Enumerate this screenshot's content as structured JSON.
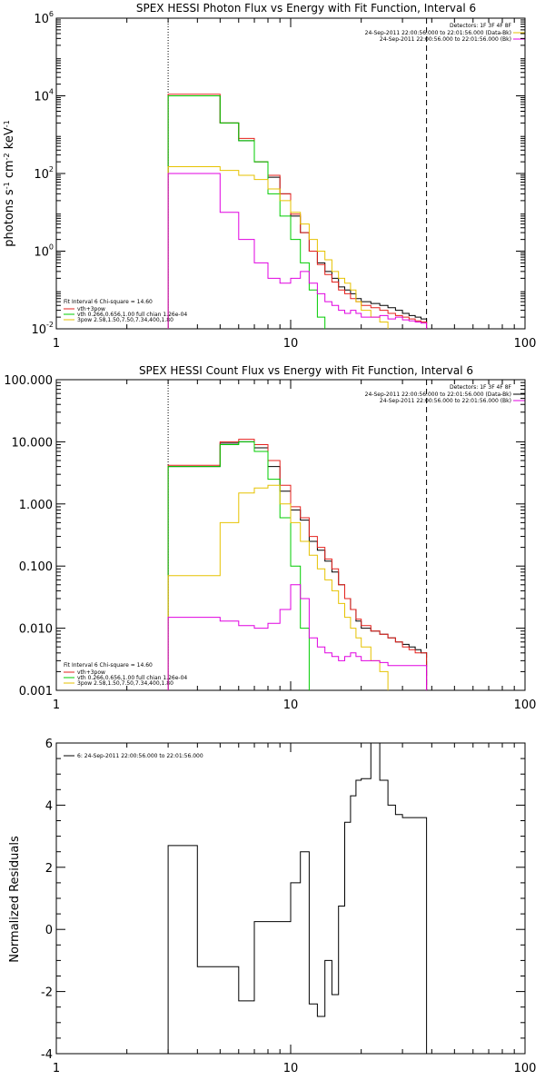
{
  "colors": {
    "black": "#000000",
    "red": "#e4201c",
    "green": "#00cc00",
    "yellow": "#e6c200",
    "magenta": "#e000e0"
  },
  "chart_data": [
    {
      "type": "line",
      "title": "SPEX HESSI Photon Flux vs Energy with Fit Function, Interval 6",
      "ylabel_parts": [
        "photons s",
        "-1",
        " cm",
        "-2",
        " keV",
        "-1"
      ],
      "xscale": "log",
      "yscale": "log",
      "xlim": [
        1,
        100
      ],
      "ylim": [
        0.01,
        1000000
      ],
      "xticks": [
        1,
        10,
        100
      ],
      "xtick_labels": [
        "1",
        "10",
        "100"
      ],
      "yticks": [
        0.01,
        1,
        100,
        10000,
        1000000
      ],
      "ytick_labels": [
        {
          "base": "10",
          "exp": "-2"
        },
        {
          "base": "10",
          "exp": "0"
        },
        {
          "base": "10",
          "exp": "2"
        },
        {
          "base": "10",
          "exp": "4"
        },
        {
          "base": "10",
          "exp": "6"
        }
      ],
      "vlines": [
        {
          "x": 3,
          "style": "dotted"
        },
        {
          "x": 38,
          "style": "dashed"
        }
      ],
      "legend_top_right": {
        "header": "Detectors: 1F 3F 4F 8F",
        "entries": [
          {
            "text": "24-Sep-2011 22:00:56.000 to 22:01:56.000 (Data-Bk)",
            "color": "#e6c200"
          },
          {
            "text": "24-Sep-2011 22:00:56.000 to 22:01:56.000 (Bk)",
            "color": "#e000e0"
          }
        ]
      },
      "legend_bottom_left": {
        "header": "Fit Interval  6    Chi-square = 14.60",
        "entries": [
          {
            "text": "vth+3pow",
            "color": "#e4201c"
          },
          {
            "text": "vth 0.266,0.656,1.00  full chian 1.26e-04",
            "color": "#00cc00"
          },
          {
            "text": "3pow 2.58,1.50,7.50,7.34,400,1.80",
            "color": "#e6c200"
          }
        ]
      },
      "series": [
        {
          "color": "#000000",
          "x": [
            3,
            4,
            5,
            6,
            7,
            8,
            9,
            10,
            11,
            12,
            13,
            14,
            15,
            16,
            17,
            18,
            19,
            20,
            22,
            24,
            26,
            28,
            30,
            32,
            34,
            36,
            38
          ],
          "y": [
            10000,
            10000,
            2000,
            700,
            200,
            80,
            30,
            8,
            3,
            1,
            0.5,
            0.3,
            0.2,
            0.12,
            0.1,
            0.08,
            0.06,
            0.05,
            0.045,
            0.04,
            0.035,
            0.03,
            0.025,
            0.022,
            0.02,
            0.018,
            0.015
          ]
        },
        {
          "color": "#e4201c",
          "x": [
            3,
            4,
            5,
            6,
            7,
            8,
            9,
            10,
            11,
            12,
            13,
            14,
            15,
            16,
            17,
            18,
            19,
            20,
            22,
            24,
            26,
            28,
            30,
            32,
            34,
            36,
            38
          ],
          "y": [
            11000,
            11000,
            2000,
            800,
            200,
            90,
            30,
            9,
            3,
            1,
            0.45,
            0.25,
            0.16,
            0.1,
            0.08,
            0.06,
            0.05,
            0.04,
            0.035,
            0.03,
            0.025,
            0.022,
            0.02,
            0.018,
            0.016,
            0.015,
            0.013
          ]
        },
        {
          "color": "#00cc00",
          "x": [
            3,
            4,
            5,
            6,
            7,
            8,
            9,
            10,
            11,
            12,
            13,
            14
          ],
          "y": [
            10000,
            10000,
            2000,
            700,
            200,
            30,
            8,
            2,
            0.5,
            0.1,
            0.02,
            0.01
          ]
        },
        {
          "color": "#e6c200",
          "x": [
            3,
            4,
            5,
            6,
            7,
            8,
            9,
            10,
            11,
            12,
            13,
            14,
            15,
            16,
            17,
            18,
            19,
            20,
            22,
            24,
            26
          ],
          "y": [
            150,
            150,
            120,
            90,
            70,
            40,
            20,
            10,
            5,
            2,
            1,
            0.6,
            0.3,
            0.2,
            0.15,
            0.1,
            0.05,
            0.03,
            0.02,
            0.015,
            0.01
          ]
        },
        {
          "color": "#e000e0",
          "x": [
            3,
            4,
            5,
            6,
            7,
            8,
            9,
            10,
            11,
            12,
            13,
            14,
            15,
            16,
            17,
            18,
            19,
            20,
            22,
            24,
            26,
            28,
            30,
            32,
            34,
            36,
            38
          ],
          "y": [
            100,
            100,
            10,
            2,
            0.5,
            0.2,
            0.15,
            0.2,
            0.3,
            0.15,
            0.08,
            0.05,
            0.04,
            0.03,
            0.025,
            0.03,
            0.025,
            0.02,
            0.02,
            0.022,
            0.018,
            0.02,
            0.017,
            0.016,
            0.015,
            0.014,
            0.013
          ]
        }
      ]
    },
    {
      "type": "line",
      "title": "SPEX HESSI Count Flux vs Energy with Fit Function, Interval 6",
      "xscale": "log",
      "yscale": "log",
      "xlim": [
        1,
        100
      ],
      "ylim": [
        0.001,
        100
      ],
      "xticks": [
        1,
        10,
        100
      ],
      "xtick_labels": [
        "1",
        "10",
        "100"
      ],
      "yticks": [
        0.001,
        0.01,
        0.1,
        1,
        10,
        100
      ],
      "ytick_labels": [
        "0.001",
        "0.010",
        "0.100",
        "1.000",
        "10.000",
        "100.000"
      ],
      "vlines": [
        {
          "x": 3,
          "style": "dotted"
        },
        {
          "x": 38,
          "style": "dashed"
        }
      ],
      "legend_top_right": {
        "header": "Detectors: 1F 3F 4F 8F",
        "entries": [
          {
            "text": "24-Sep-2011 22:00:56.000 to 22:01:56.000 (Data-Bk)",
            "color": "#000000"
          },
          {
            "text": "24-Sep-2011 22:00:56.000 to 22:01:56.000 (Bk)",
            "color": "#e000e0"
          }
        ]
      },
      "legend_bottom_left": {
        "header": "Fit Interval  6    Chi-square = 14.60",
        "entries": [
          {
            "text": "vth+3pow",
            "color": "#e4201c"
          },
          {
            "text": "vth 0.266,0.656,1.00  full chian 1.26e-04",
            "color": "#00cc00"
          },
          {
            "text": "3pow 2.58,1.50,7.50,7.34,400,1.80",
            "color": "#e6c200"
          }
        ]
      },
      "series": [
        {
          "color": "#000000",
          "x": [
            3,
            4,
            5,
            6,
            7,
            8,
            9,
            10,
            11,
            12,
            13,
            14,
            15,
            16,
            17,
            18,
            19,
            20,
            22,
            24,
            26,
            28,
            30,
            32,
            34,
            36,
            38
          ],
          "y": [
            4,
            4,
            9.5,
            10,
            8,
            4,
            1.6,
            0.8,
            0.55,
            0.25,
            0.18,
            0.12,
            0.08,
            0.05,
            0.03,
            0.02,
            0.013,
            0.01,
            0.009,
            0.008,
            0.007,
            0.006,
            0.0055,
            0.005,
            0.0045,
            0.004,
            0.004
          ]
        },
        {
          "color": "#e4201c",
          "x": [
            3,
            4,
            5,
            6,
            7,
            8,
            9,
            10,
            11,
            12,
            13,
            14,
            15,
            16,
            17,
            18,
            19,
            20,
            22,
            24,
            26,
            28,
            30,
            32,
            34,
            36,
            38
          ],
          "y": [
            4.2,
            4.2,
            10,
            11,
            9,
            5,
            2,
            0.9,
            0.6,
            0.3,
            0.2,
            0.13,
            0.09,
            0.05,
            0.03,
            0.02,
            0.014,
            0.011,
            0.009,
            0.008,
            0.007,
            0.006,
            0.005,
            0.0045,
            0.004,
            0.004,
            0.004
          ]
        },
        {
          "color": "#00cc00",
          "x": [
            3,
            4,
            5,
            6,
            7,
            8,
            9,
            10,
            11,
            12
          ],
          "y": [
            4,
            4,
            9,
            10,
            7,
            2.5,
            0.6,
            0.1,
            0.01,
            0.001
          ]
        },
        {
          "color": "#e6c200",
          "x": [
            3,
            4,
            5,
            6,
            7,
            8,
            9,
            10,
            11,
            12,
            13,
            14,
            15,
            16,
            17,
            18,
            19,
            20,
            22,
            24,
            26
          ],
          "y": [
            0.07,
            0.07,
            0.5,
            1.5,
            1.8,
            2,
            1,
            0.5,
            0.25,
            0.15,
            0.09,
            0.06,
            0.04,
            0.025,
            0.015,
            0.01,
            0.007,
            0.005,
            0.003,
            0.002,
            0.001
          ]
        },
        {
          "color": "#e000e0",
          "x": [
            3,
            4,
            5,
            6,
            7,
            8,
            9,
            10,
            11,
            12,
            13,
            14,
            15,
            16,
            17,
            18,
            19,
            20,
            22,
            24,
            26,
            28,
            30,
            32,
            34,
            36,
            38
          ],
          "y": [
            0.015,
            0.015,
            0.013,
            0.011,
            0.01,
            0.012,
            0.02,
            0.05,
            0.03,
            0.007,
            0.005,
            0.004,
            0.0035,
            0.003,
            0.0035,
            0.004,
            0.0035,
            0.003,
            0.003,
            0.0028,
            0.0025,
            0.0025,
            0.0025,
            0.0025,
            0.0025,
            0.0025,
            0.0025
          ]
        }
      ]
    },
    {
      "type": "line",
      "ylabel": "Normalized Residuals",
      "xscale": "log",
      "yscale": "linear",
      "xlim": [
        1,
        100
      ],
      "ylim": [
        -4,
        6
      ],
      "xticks": [
        1,
        10,
        100
      ],
      "xtick_labels": [
        "1",
        "10",
        "100"
      ],
      "yticks": [
        -4,
        -2,
        0,
        2,
        4,
        6
      ],
      "ytick_labels": [
        "-4",
        "-2",
        "0",
        "2",
        "4",
        "6"
      ],
      "legend": {
        "text": "6: 24-Sep-2011 22:00:56.000 to 22:01:56.000",
        "color": "#000000"
      },
      "series": [
        {
          "color": "#000000",
          "edges": [
            3,
            4,
            5,
            6,
            7,
            8,
            9,
            10,
            11,
            12,
            13,
            14,
            15,
            16,
            17,
            18,
            19,
            20,
            22,
            24,
            26,
            28,
            30,
            32,
            34,
            36,
            38
          ],
          "values": [
            2.7,
            -1.2,
            -1.2,
            -2.3,
            0.25,
            0.25,
            0.25,
            1.5,
            2.5,
            -2.4,
            -2.8,
            -1.0,
            -2.1,
            0.75,
            3.45,
            4.3,
            4.8,
            4.85,
            6.0,
            4.8,
            4.0,
            3.7,
            3.6,
            3.6,
            3.6,
            3.6
          ]
        }
      ]
    }
  ]
}
